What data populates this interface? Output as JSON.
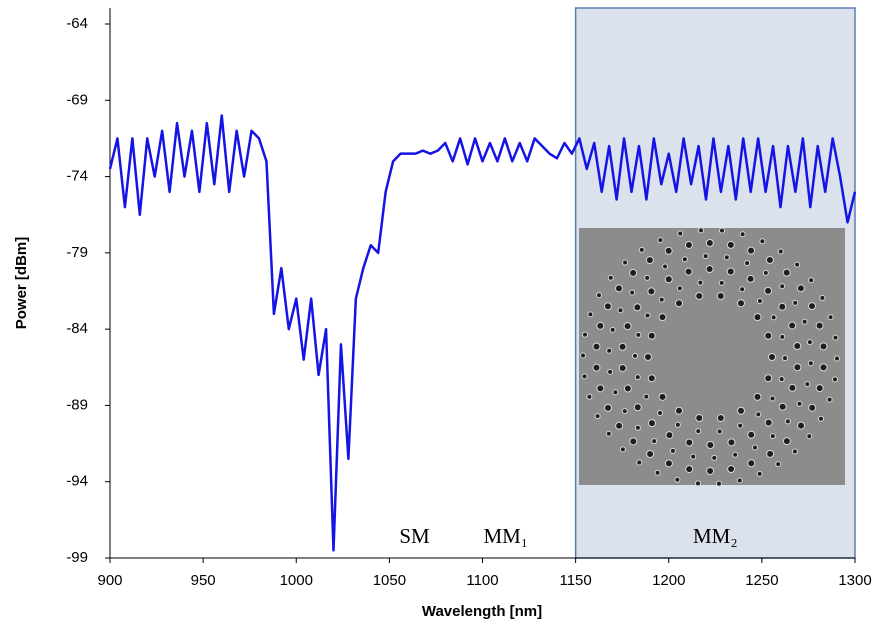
{
  "chart_data": {
    "type": "line",
    "x_label": "Wavelength [nm]",
    "y_label": "Power [dBm]",
    "xlim": [
      900,
      1300
    ],
    "xticks": [
      900,
      950,
      1000,
      1050,
      1100,
      1150,
      1200,
      1250,
      1300
    ],
    "ylim": [
      -99,
      -64
    ],
    "yticks": [
      -99,
      -94,
      -89,
      -84,
      -79,
      -74,
      -69,
      -64
    ],
    "regions": [
      {
        "label": "SM",
        "range": [
          1052,
          1075
        ]
      },
      {
        "label": "MM₁",
        "range": [
          1075,
          1150
        ]
      },
      {
        "label": "MM₂",
        "range": [
          1150,
          1300
        ]
      }
    ],
    "x": [
      900,
      904,
      908,
      912,
      916,
      920,
      924,
      928,
      932,
      936,
      940,
      944,
      948,
      952,
      956,
      960,
      964,
      968,
      972,
      976,
      980,
      984,
      988,
      992,
      996,
      1000,
      1004,
      1008,
      1012,
      1016,
      1020,
      1024,
      1028,
      1032,
      1036,
      1040,
      1044,
      1048,
      1052,
      1056,
      1060,
      1064,
      1068,
      1072,
      1076,
      1080,
      1084,
      1088,
      1092,
      1096,
      1100,
      1104,
      1108,
      1112,
      1116,
      1120,
      1124,
      1128,
      1132,
      1136,
      1140,
      1144,
      1148,
      1152,
      1156,
      1160,
      1164,
      1168,
      1172,
      1176,
      1180,
      1184,
      1188,
      1192,
      1196,
      1200,
      1204,
      1208,
      1212,
      1216,
      1220,
      1224,
      1228,
      1232,
      1236,
      1240,
      1244,
      1248,
      1252,
      1256,
      1260,
      1264,
      1268,
      1272,
      1276,
      1280,
      1284,
      1288,
      1292,
      1296,
      1300
    ],
    "series": [
      {
        "color": "#1414e6",
        "values": [
          -73.5,
          -71.5,
          -76,
          -71.5,
          -76.5,
          -71.5,
          -74,
          -71,
          -75,
          -70.5,
          -74,
          -71,
          -75,
          -70.5,
          -74.5,
          -70,
          -75,
          -71,
          -74,
          -71,
          -71.5,
          -73,
          -83,
          -80,
          -84,
          -82,
          -86,
          -82,
          -87,
          -84,
          -98.5,
          -85,
          -92.5,
          -82,
          -80,
          -78.5,
          -79,
          -75,
          -73,
          -72.5,
          -72.5,
          -72.5,
          -72.3,
          -72.5,
          -72.3,
          -71.8,
          -73,
          -71.5,
          -73.2,
          -71.5,
          -73,
          -71.8,
          -73,
          -71.5,
          -73,
          -71.8,
          -73,
          -71.5,
          -72,
          -72.5,
          -72.8,
          -71.8,
          -72.5,
          -71.5,
          -73.5,
          -71.8,
          -75,
          -72,
          -75.5,
          -71.5,
          -75,
          -72,
          -75.5,
          -71.5,
          -74.5,
          -72.5,
          -75,
          -71.5,
          -74.5,
          -72,
          -75.5,
          -71.5,
          -75,
          -72,
          -75.5,
          -71.5,
          -75,
          -71.5,
          -75,
          -72,
          -76,
          -72,
          -75,
          -71.5,
          -76,
          -72,
          -75,
          -71.5,
          -74,
          -77,
          -75
        ]
      }
    ]
  }
}
